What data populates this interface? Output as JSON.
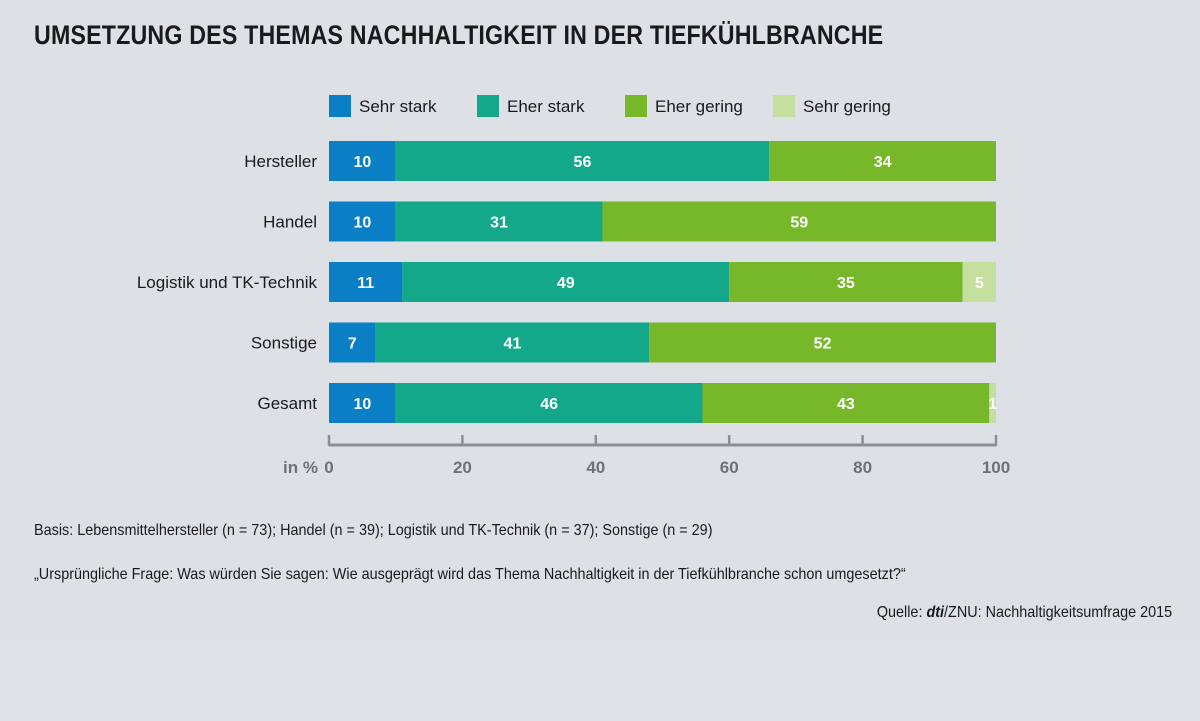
{
  "title": "UMSETZUNG DES THEMAS NACHHALTIGKEIT IN DER TIEFKÜHLBRANCHE",
  "chart_data": {
    "type": "bar",
    "orientation": "horizontal",
    "stacked": true,
    "categories": [
      "Hersteller",
      "Handel",
      "Logistik und TK-Technik",
      "Sonstige",
      "Gesamt"
    ],
    "series": [
      {
        "name": "Sehr stark",
        "color": "#0a7fc6",
        "values": [
          10,
          10,
          11,
          7,
          10
        ]
      },
      {
        "name": "Eher stark",
        "color": "#14a88a",
        "values": [
          56,
          31,
          49,
          41,
          46
        ]
      },
      {
        "name": "Eher gering",
        "color": "#76b82a",
        "values": [
          34,
          59,
          35,
          52,
          43
        ]
      },
      {
        "name": "Sehr gering",
        "color": "#c5df9f",
        "values": [
          0,
          0,
          5,
          0,
          1
        ]
      }
    ],
    "xlabel": "in %",
    "xlim": [
      0,
      100
    ],
    "xticks": [
      0,
      20,
      40,
      60,
      80,
      100
    ],
    "legend_position": "top",
    "grid": false
  },
  "notes": {
    "basis": "Basis: Lebensmittelhersteller (n = 73); Handel (n = 39);  Logistik und TK-Technik (n = 37); Sonstige (n = 29)",
    "question": "„Ursprüngliche Frage: Was würden Sie sagen: Wie ausgeprägt wird das Thema Nachhaltigkeit in der Tiefkühlbranche schon umgesetzt?“",
    "source_prefix": "Quelle: ",
    "source_brand": "dti",
    "source_rest": "/ZNU: Nachhaltigkeitsumfrage 2015"
  }
}
